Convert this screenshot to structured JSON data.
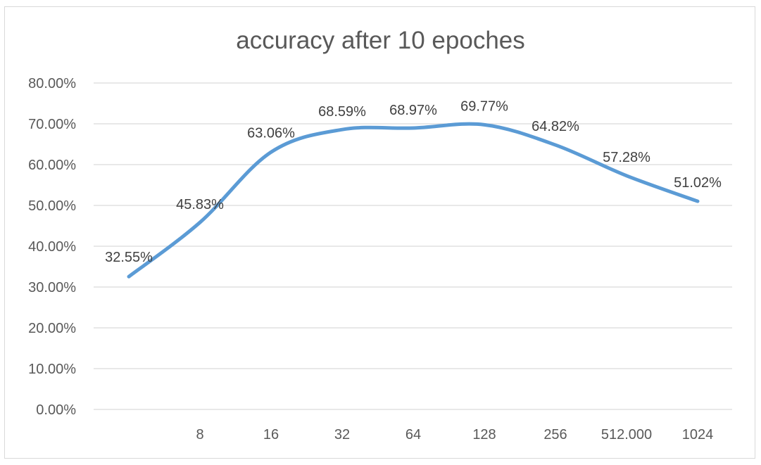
{
  "chart_data": {
    "type": "line",
    "title": "accuracy after 10 epoches",
    "xlabel": "",
    "ylabel": "",
    "categories": [
      "",
      "8",
      "16",
      "32",
      "64",
      "128",
      "256",
      "512.000",
      "1024"
    ],
    "series": [
      {
        "values": [
          0.3255,
          0.4583,
          0.6306,
          0.6859,
          0.6897,
          0.6977,
          0.6482,
          0.5728,
          0.5102
        ],
        "data_labels": [
          "32.55%",
          "45.83%",
          "63.06%",
          "68.59%",
          "68.97%",
          "69.77%",
          "64.82%",
          "57.28%",
          "51.02%"
        ],
        "color": "#5b9bd5",
        "smooth": true
      }
    ],
    "ylim": [
      0,
      0.8
    ],
    "y_ticks": [
      0,
      0.1,
      0.2,
      0.3,
      0.4,
      0.5,
      0.6,
      0.7,
      0.8
    ],
    "y_tick_labels": [
      "0.00%",
      "10.00%",
      "20.00%",
      "30.00%",
      "40.00%",
      "50.00%",
      "60.00%",
      "70.00%",
      "80.00%"
    ],
    "grid": true,
    "legend": "none"
  }
}
